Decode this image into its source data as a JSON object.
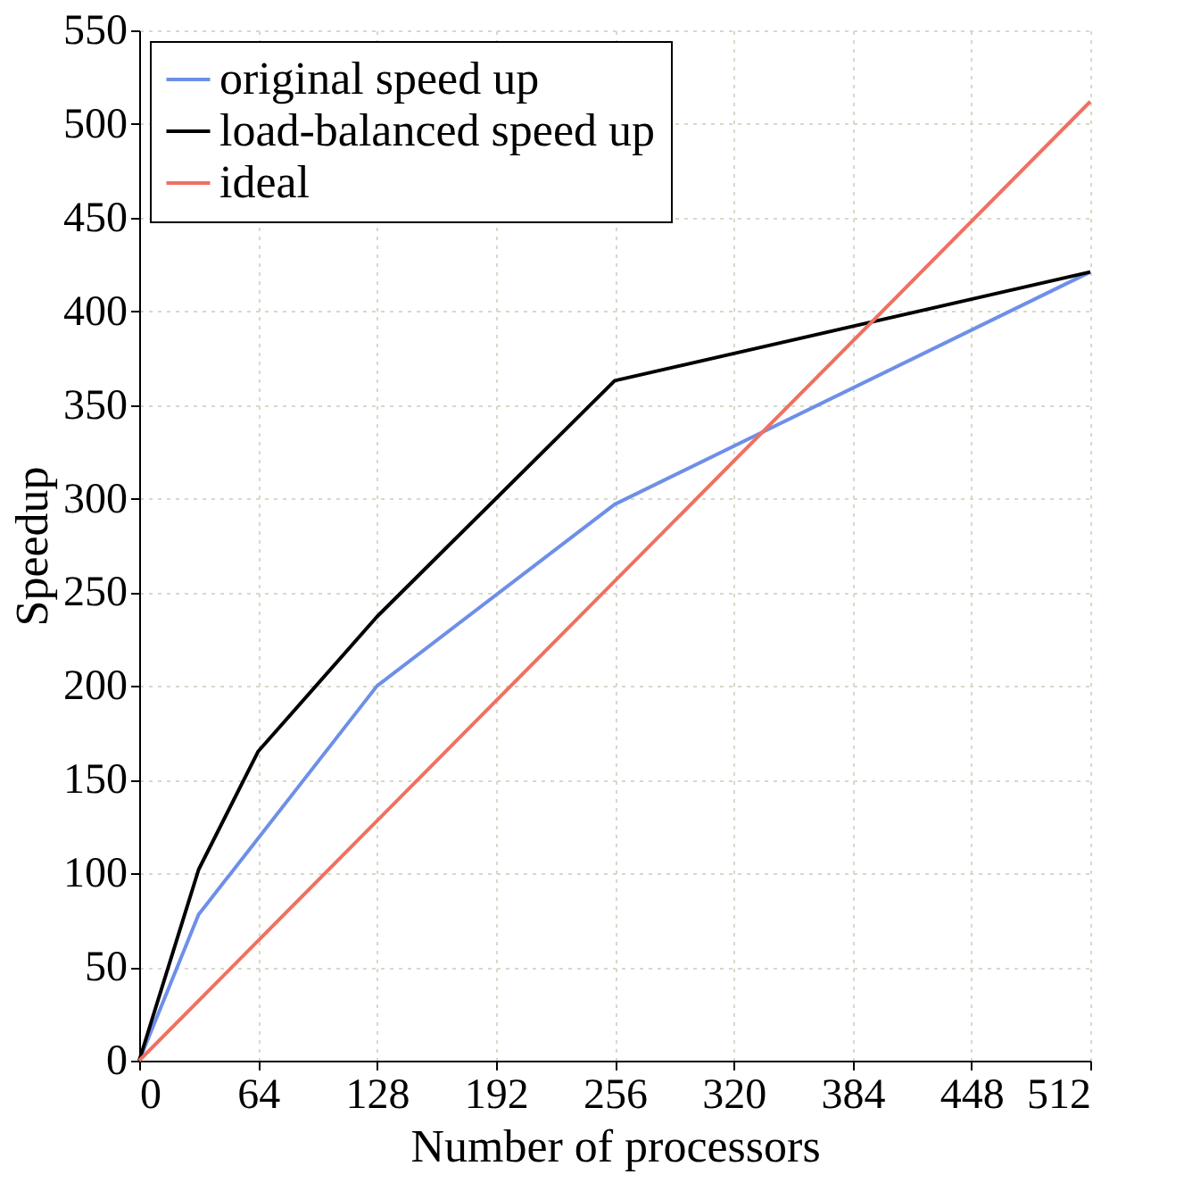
{
  "chart_data": {
    "type": "line",
    "xlabel": "Number of processors",
    "ylabel": "Speedup",
    "xlim": [
      0,
      512
    ],
    "xticks": [
      0,
      64,
      128,
      192,
      256,
      320,
      384,
      448,
      512
    ],
    "ylim": [
      0,
      550
    ],
    "yticks": [
      0,
      50,
      100,
      150,
      200,
      250,
      300,
      350,
      400,
      450,
      500,
      550
    ],
    "grid": true,
    "legend": "top left",
    "line_style": "solid",
    "marker": "none",
    "series": [
      {
        "name": "original speed up",
        "color": "#6e8fe8",
        "x": [
          0,
          32,
          128,
          256,
          512
        ],
        "values": [
          0,
          78,
          200,
          297,
          421
        ]
      },
      {
        "name": "load-balanced speed up",
        "color": "#000000",
        "x": [
          0,
          32,
          64,
          128,
          256,
          512
        ],
        "values": [
          0,
          102,
          165,
          237,
          363,
          421
        ]
      },
      {
        "name": "ideal",
        "color": "#f07060",
        "x": [
          0,
          512
        ],
        "values": [
          0,
          512
        ]
      }
    ]
  }
}
